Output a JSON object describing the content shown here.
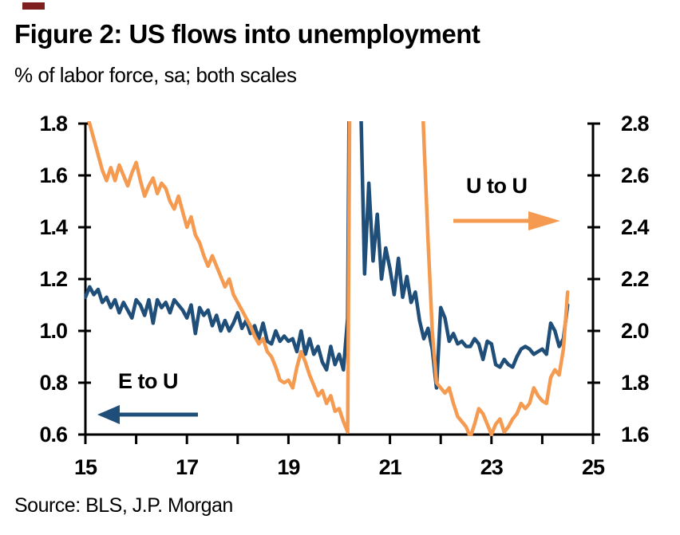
{
  "header": {
    "title": "Figure 2: US flows into unemployment",
    "subtitle": "% of labor force, sa; both scales"
  },
  "footer": {
    "source": "Source: BLS, J.P. Morgan"
  },
  "colors": {
    "e_to_u_blue": "#1F4E79",
    "u_to_u_orange": "#F59B51",
    "axis_black": "#000000",
    "artifact_red": "#7e1f1f"
  },
  "chart_data": {
    "type": "line",
    "title": "Figure 2: US flows into unemployment",
    "subtitle": "% of labor force, sa; both scales",
    "x_unit": "year (monthly data)",
    "x_start": 15.0,
    "x_step": 0.08333,
    "xlim": [
      15,
      25
    ],
    "x_minor_ticks": [
      15,
      16,
      17,
      18,
      19,
      20,
      21,
      22,
      23,
      24,
      25
    ],
    "x_tick_labels": [
      "15",
      "17",
      "19",
      "21",
      "23",
      "25"
    ],
    "x_tick_label_years": [
      15,
      17,
      19,
      21,
      23,
      25
    ],
    "grid": false,
    "legend_position": "annotated arrows inside plot",
    "left_axis": {
      "series": "E to U",
      "lim": [
        0.6,
        1.8
      ],
      "ticks": [
        0.6,
        0.8,
        1.0,
        1.2,
        1.4,
        1.6,
        1.8
      ],
      "tick_labels": [
        "0.6",
        "0.8",
        "1.0",
        "1.2",
        "1.4",
        "1.6",
        "1.8"
      ]
    },
    "right_axis": {
      "series": "U to U",
      "lim": [
        1.6,
        2.8
      ],
      "ticks": [
        1.6,
        1.8,
        2.0,
        2.2,
        2.4,
        2.6,
        2.8
      ],
      "tick_labels": [
        "1.6",
        "1.8",
        "2.0",
        "2.2",
        "2.4",
        "2.6",
        "2.8"
      ]
    },
    "clip_note": "values beyond axis limits are clipped at plot edges (2020-21 COVID spikes go off scale)",
    "series": [
      {
        "name": "E to U",
        "axis": "left",
        "color": "#1F4E79",
        "values": [
          1.13,
          1.17,
          1.14,
          1.16,
          1.11,
          1.13,
          1.09,
          1.12,
          1.07,
          1.11,
          1.08,
          1.05,
          1.12,
          1.1,
          1.06,
          1.12,
          1.03,
          1.12,
          1.09,
          1.11,
          1.07,
          1.12,
          1.1,
          1.08,
          1.05,
          1.1,
          0.99,
          1.09,
          1.06,
          1.08,
          1.02,
          1.06,
          1.0,
          1.04,
          1.0,
          1.03,
          1.07,
          1.01,
          1.04,
          0.99,
          1.02,
          0.97,
          1.03,
          0.96,
          0.95,
          1.0,
          0.96,
          0.98,
          0.96,
          0.97,
          0.92,
          1.0,
          0.91,
          0.97,
          0.91,
          0.94,
          0.88,
          0.85,
          0.94,
          0.87,
          0.91,
          0.85,
          1.05,
          3.4,
          2.6,
          1.95,
          1.22,
          1.57,
          1.27,
          1.45,
          1.2,
          1.32,
          1.24,
          1.14,
          1.28,
          1.13,
          1.21,
          1.11,
          1.15,
          1.04,
          0.97,
          1.01,
          0.93,
          0.78,
          1.09,
          1.05,
          0.96,
          0.99,
          0.95,
          0.96,
          0.94,
          0.94,
          0.97,
          0.95,
          0.89,
          0.96,
          0.95,
          0.87,
          0.86,
          0.89,
          0.87,
          0.86,
          0.9,
          0.93,
          0.94,
          0.93,
          0.91,
          0.92,
          0.93,
          0.91,
          1.03,
          1.0,
          0.94,
          0.97,
          1.1
        ]
      },
      {
        "name": "U to U",
        "axis": "right",
        "color": "#F59B51",
        "values": [
          2.86,
          2.8,
          2.74,
          2.68,
          2.62,
          2.58,
          2.63,
          2.58,
          2.64,
          2.6,
          2.56,
          2.61,
          2.65,
          2.58,
          2.52,
          2.56,
          2.59,
          2.53,
          2.57,
          2.55,
          2.5,
          2.47,
          2.52,
          2.46,
          2.4,
          2.44,
          2.37,
          2.34,
          2.29,
          2.25,
          2.29,
          2.25,
          2.21,
          2.17,
          2.2,
          2.14,
          2.11,
          2.08,
          2.05,
          2.02,
          1.98,
          1.95,
          1.97,
          1.92,
          1.9,
          1.86,
          1.81,
          1.8,
          1.81,
          1.78,
          1.86,
          1.92,
          1.88,
          1.83,
          1.79,
          1.75,
          1.77,
          1.72,
          1.75,
          1.69,
          1.7,
          1.65,
          1.61,
          4.2,
          4.2,
          4.2,
          4.2,
          4.2,
          4.2,
          4.2,
          4.2,
          4.2,
          4.2,
          4.2,
          4.2,
          4.2,
          4.2,
          4.2,
          4.2,
          3.2,
          2.75,
          2.35,
          2.0,
          1.8,
          1.78,
          1.76,
          1.78,
          1.72,
          1.67,
          1.65,
          1.63,
          1.59,
          1.64,
          1.7,
          1.68,
          1.64,
          1.6,
          1.64,
          1.66,
          1.61,
          1.63,
          1.66,
          1.68,
          1.72,
          1.7,
          1.72,
          1.78,
          1.75,
          1.73,
          1.72,
          1.82,
          1.85,
          1.83,
          1.93,
          2.15
        ]
      }
    ],
    "annotations": [
      {
        "text": "U to U",
        "arrow": "right",
        "color": "#F59B51"
      },
      {
        "text": "E to U",
        "arrow": "left",
        "color": "#1F4E79"
      }
    ]
  }
}
